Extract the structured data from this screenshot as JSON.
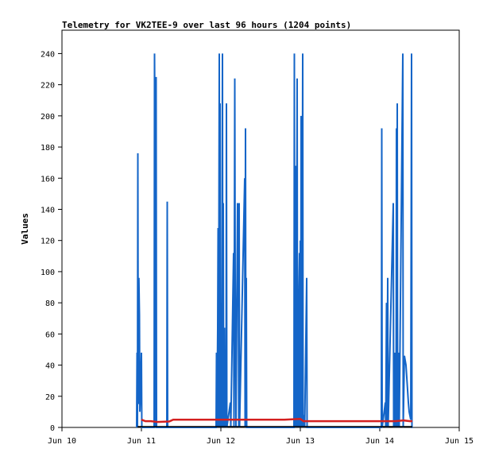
{
  "chart_data": {
    "type": "line",
    "title": "Telemetry for VK2TEE-9 over last 96 hours (1204 points)",
    "xlabel": "",
    "ylabel": "Values",
    "xlim": [
      10,
      15
    ],
    "ylim": [
      0,
      255
    ],
    "xtick_values": [
      10,
      11,
      12,
      13,
      14,
      15
    ],
    "xtick_labels": [
      "Jun 10",
      "Jun 11",
      "Jun 12",
      "Jun 13",
      "Jun 14",
      "Jun 15"
    ],
    "ytick_values": [
      0,
      20,
      40,
      60,
      80,
      100,
      120,
      140,
      160,
      180,
      200,
      220,
      240
    ],
    "ytick_labels": [
      "0",
      "20",
      "40",
      "60",
      "80",
      "100",
      "120",
      "140",
      "160",
      "180",
      "200",
      "220",
      "240"
    ],
    "grid": false,
    "series": [
      {
        "color": "#1465c8",
        "points": [
          [
            10.94,
            0
          ],
          [
            10.945,
            48
          ],
          [
            10.95,
            0
          ],
          [
            10.955,
            176
          ],
          [
            10.96,
            15
          ],
          [
            10.968,
            96
          ],
          [
            10.975,
            72
          ],
          [
            10.98,
            10
          ],
          [
            10.99,
            25
          ],
          [
            11.0,
            48
          ],
          [
            11.005,
            0
          ],
          [
            11.16,
            0
          ],
          [
            11.165,
            240
          ],
          [
            11.17,
            190
          ],
          [
            11.175,
            192
          ],
          [
            11.18,
            0
          ],
          [
            11.185,
            225
          ],
          [
            11.19,
            0
          ],
          [
            11.32,
            0
          ],
          [
            11.325,
            145
          ],
          [
            11.33,
            0
          ],
          [
            11.94,
            0
          ],
          [
            11.945,
            48
          ],
          [
            11.95,
            0
          ],
          [
            11.96,
            64
          ],
          [
            11.965,
            128
          ],
          [
            11.97,
            0
          ],
          [
            11.98,
            240
          ],
          [
            11.985,
            0
          ],
          [
            11.99,
            208
          ],
          [
            11.995,
            0
          ],
          [
            12.0,
            64
          ],
          [
            12.005,
            80
          ],
          [
            12.01,
            0
          ],
          [
            12.02,
            240
          ],
          [
            12.025,
            0
          ],
          [
            12.03,
            144
          ],
          [
            12.035,
            0
          ],
          [
            12.045,
            64
          ],
          [
            12.05,
            0
          ],
          [
            12.06,
            16
          ],
          [
            12.065,
            0
          ],
          [
            12.07,
            208
          ],
          [
            12.075,
            0
          ],
          [
            12.12,
            16
          ],
          [
            12.125,
            0
          ],
          [
            12.16,
            112
          ],
          [
            12.165,
            0
          ],
          [
            12.175,
            224
          ],
          [
            12.18,
            96
          ],
          [
            12.19,
            0
          ],
          [
            12.21,
            144
          ],
          [
            12.22,
            96
          ],
          [
            12.225,
            0
          ],
          [
            12.23,
            144
          ],
          [
            12.235,
            0
          ],
          [
            12.3,
            160
          ],
          [
            12.305,
            0
          ],
          [
            12.31,
            192
          ],
          [
            12.315,
            0
          ],
          [
            12.32,
            96
          ],
          [
            12.325,
            0
          ],
          [
            12.92,
            0
          ],
          [
            12.925,
            240
          ],
          [
            12.93,
            0
          ],
          [
            12.94,
            56
          ],
          [
            12.945,
            168
          ],
          [
            12.95,
            0
          ],
          [
            12.96,
            224
          ],
          [
            12.965,
            0
          ],
          [
            12.97,
            64
          ],
          [
            12.975,
            0
          ],
          [
            12.98,
            80
          ],
          [
            12.985,
            96
          ],
          [
            12.99,
            112
          ],
          [
            12.995,
            0
          ],
          [
            13.0,
            120
          ],
          [
            13.005,
            0
          ],
          [
            13.01,
            200
          ],
          [
            13.015,
            40
          ],
          [
            13.02,
            0
          ],
          [
            13.03,
            240
          ],
          [
            13.035,
            0
          ],
          [
            13.05,
            8
          ],
          [
            13.055,
            0
          ],
          [
            13.08,
            96
          ],
          [
            13.085,
            0
          ],
          [
            14.02,
            0
          ],
          [
            14.025,
            192
          ],
          [
            14.03,
            0
          ],
          [
            14.07,
            16
          ],
          [
            14.075,
            0
          ],
          [
            14.085,
            80
          ],
          [
            14.09,
            0
          ],
          [
            14.1,
            96
          ],
          [
            14.105,
            0
          ],
          [
            14.17,
            144
          ],
          [
            14.175,
            0
          ],
          [
            14.185,
            48
          ],
          [
            14.19,
            0
          ],
          [
            14.2,
            48
          ],
          [
            14.205,
            0
          ],
          [
            14.21,
            192
          ],
          [
            14.215,
            0
          ],
          [
            14.22,
            208
          ],
          [
            14.225,
            0
          ],
          [
            14.23,
            32
          ],
          [
            14.235,
            0
          ],
          [
            14.24,
            48
          ],
          [
            14.245,
            0
          ],
          [
            14.29,
            240
          ],
          [
            14.295,
            0
          ],
          [
            14.31,
            46
          ],
          [
            14.33,
            40
          ],
          [
            14.34,
            32
          ],
          [
            14.35,
            24
          ],
          [
            14.36,
            16
          ],
          [
            14.37,
            10
          ],
          [
            14.39,
            5
          ],
          [
            14.4,
            240
          ],
          [
            14.405,
            0
          ],
          [
            14.41,
            0
          ]
        ]
      },
      {
        "color": "#d42020",
        "points": [
          [
            11.0,
            5
          ],
          [
            11.05,
            4
          ],
          [
            11.12,
            4
          ],
          [
            11.2,
            3.5
          ],
          [
            11.35,
            3.8
          ],
          [
            11.4,
            5
          ],
          [
            11.6,
            5
          ],
          [
            11.8,
            5
          ],
          [
            11.95,
            5
          ],
          [
            12.0,
            5
          ],
          [
            12.2,
            5
          ],
          [
            12.4,
            5
          ],
          [
            12.6,
            5
          ],
          [
            12.8,
            5
          ],
          [
            13.0,
            5.5
          ],
          [
            13.04,
            4
          ],
          [
            13.2,
            4
          ],
          [
            13.4,
            4
          ],
          [
            13.6,
            4
          ],
          [
            13.8,
            4
          ],
          [
            14.0,
            4
          ],
          [
            14.2,
            4
          ],
          [
            14.3,
            4.5
          ],
          [
            14.38,
            4
          ],
          [
            14.41,
            4
          ]
        ]
      },
      {
        "color": "#000000",
        "points": [
          [
            10.95,
            0.5
          ],
          [
            14.41,
            0.5
          ]
        ]
      }
    ]
  }
}
